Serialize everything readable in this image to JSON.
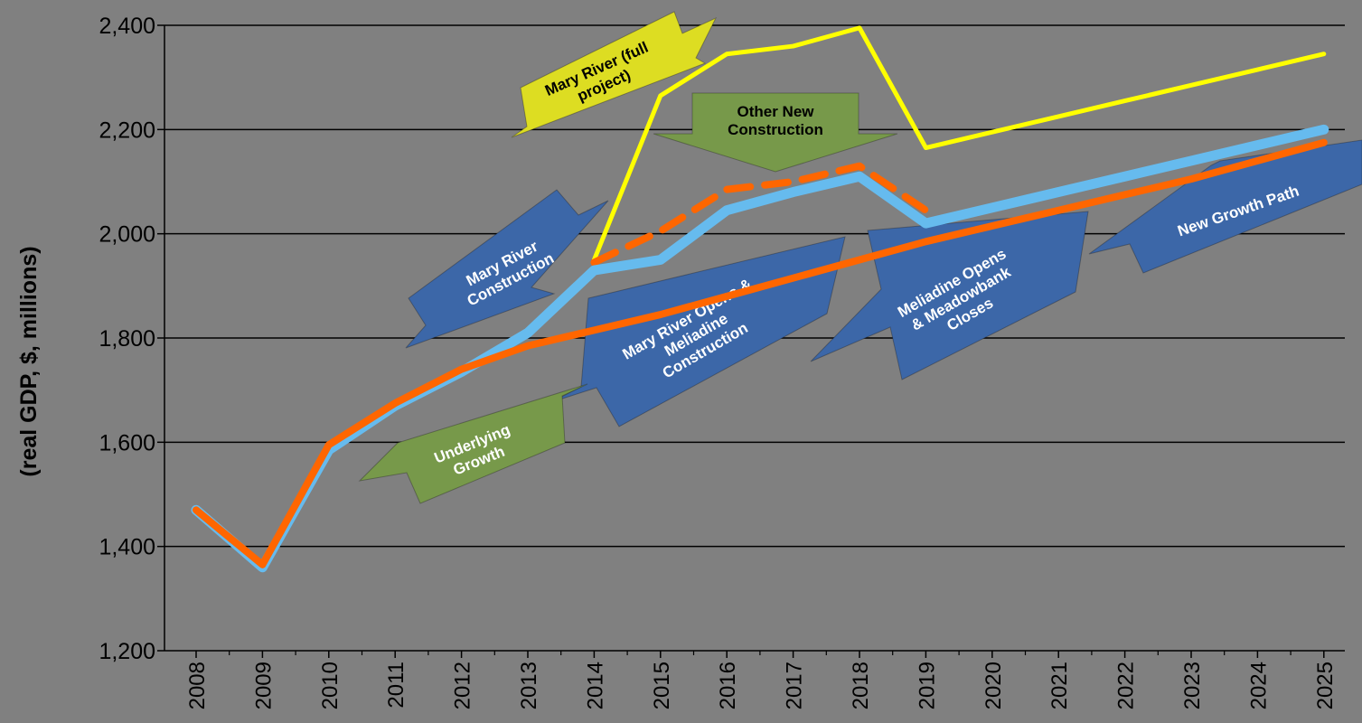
{
  "chart_data": {
    "type": "line",
    "title": "",
    "xlabel": "",
    "ylabel": "(real GDP, $, millions)",
    "x": [
      "2008",
      "2009",
      "2010",
      "2011",
      "2012",
      "2013",
      "2014",
      "2015",
      "2016",
      "2017",
      "2018",
      "2019",
      "2020",
      "2021",
      "2022",
      "2023",
      "2024",
      "2025"
    ],
    "ylim": [
      1200,
      2400
    ],
    "yticks": [
      "1,200",
      "1,400",
      "1,600",
      "1,800",
      "2,000",
      "2,200",
      "2,400"
    ],
    "grid": true,
    "series": [
      {
        "name": "",
        "color": "#FFFF00",
        "style": "solid",
        "values": [
          null,
          null,
          null,
          null,
          null,
          null,
          1950,
          2265,
          2345,
          2360,
          2395,
          2165,
          2195,
          2225,
          2255,
          2285,
          2315,
          2345
        ]
      },
      {
        "name": "",
        "color": "#FF6600",
        "style": "dashed",
        "values": [
          null,
          null,
          null,
          null,
          null,
          null,
          1945,
          2005,
          2085,
          2100,
          2130,
          2045,
          null,
          null,
          null,
          null,
          null,
          null
        ]
      },
      {
        "name": "",
        "color": "#66BBEE",
        "style": "solid",
        "values": [
          1470,
          1360,
          1585,
          1670,
          1735,
          1810,
          1930,
          1950,
          2045,
          2080,
          2110,
          2020,
          2050,
          2080,
          2110,
          2140,
          2170,
          2200
        ]
      },
      {
        "name": "",
        "color": "#FF6600",
        "style": "solid",
        "values": [
          1470,
          1365,
          1595,
          1675,
          1740,
          1785,
          1815,
          1845,
          1880,
          1915,
          1950,
          1985,
          2015,
          2045,
          2075,
          2105,
          2140,
          2175
        ]
      }
    ],
    "annotations": [
      {
        "text": "Mary River (full project)",
        "lines": [
          "Mary River (full",
          "project)"
        ],
        "color": "#DDDD22",
        "text_color": "#000000"
      },
      {
        "text": "Other New Construction",
        "lines": [
          "Other New",
          "Construction"
        ],
        "color": "#77994A",
        "text_color": "#000000"
      },
      {
        "text": "Mary River Construction",
        "lines": [
          "Mary River",
          "Construction"
        ],
        "color": "#3C67A8",
        "text_color": "#FFFFFF"
      },
      {
        "text": "Mary River Opens & Meliadine Construction",
        "lines": [
          "Mary River Opens &",
          "Meliadine",
          "Construction"
        ],
        "color": "#3C67A8",
        "text_color": "#FFFFFF"
      },
      {
        "text": "Meliadine Opens & Meadowbank Closes",
        "lines": [
          "Meliadine Opens",
          "& Meadowbank",
          "Closes"
        ],
        "color": "#3C67A8",
        "text_color": "#FFFFFF"
      },
      {
        "text": "New Growth Path",
        "lines": [
          "New Growth Path"
        ],
        "color": "#3C67A8",
        "text_color": "#FFFFFF"
      },
      {
        "text": "Underlying Growth",
        "lines": [
          "Underlying",
          "Growth"
        ],
        "color": "#77994A",
        "text_color": "#FFFFFF"
      }
    ]
  }
}
